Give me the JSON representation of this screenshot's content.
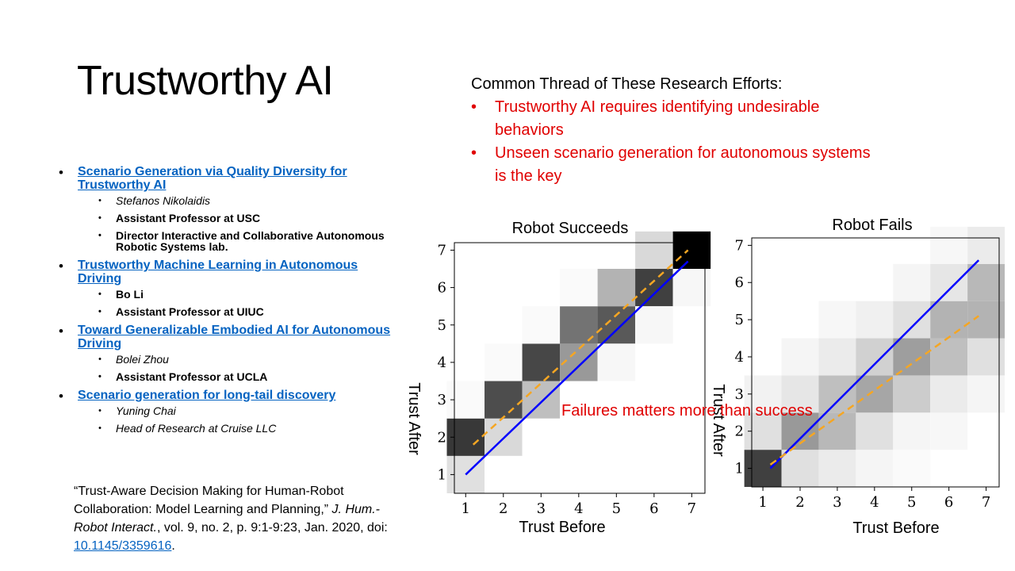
{
  "slide": {
    "title": "Trustworthy AI",
    "thread_heading": "Common Thread of These Research Efforts:",
    "thread_points": [
      "Trustworthy AI requires identifying undesirable behaviors",
      "Unseen scenario generation for autonomous systems is the key"
    ],
    "talks": [
      {
        "title": "Scenario Generation via Quality Diversity for Trustworthy AI",
        "details": [
          {
            "text": "Stefanos Nikolaidis",
            "style": "italic"
          },
          {
            "text": "Assistant Professor at USC",
            "style": "bold"
          },
          {
            "text": "Director Interactive and Collaborative Autonomous Robotic Systems lab.",
            "style": "bold"
          }
        ]
      },
      {
        "title": "Trustworthy Machine Learning in Autonomous Driving",
        "details": [
          {
            "text": "Bo Li",
            "style": "bold"
          },
          {
            "text": "Assistant Professor at UIUC",
            "style": "bold"
          }
        ]
      },
      {
        "title": "Toward Generalizable Embodied AI for Autonomous Driving",
        "details": [
          {
            "text": "Bolei Zhou",
            "style": "italic"
          },
          {
            "text": "Assistant Professor at UCLA",
            "style": "bold"
          }
        ]
      },
      {
        "title": "Scenario generation for long-tail discovery",
        "details": [
          {
            "text": "Yuning Chai",
            "style": "italic"
          },
          {
            "text": "Head of Research at Cruise LLC",
            "style": "italic"
          }
        ]
      }
    ],
    "citation_prefix": "“Trust-Aware Decision Making for Human-Robot Collaboration: Model Learning and Planning,” ",
    "citation_journal": "J. Hum.-Robot Interact.",
    "citation_mid": ", vol. 9, no. 2, p. 9:1-9:23, Jan. 2020, doi: ",
    "citation_doi": "10.1145/3359616",
    "citation_end": ".",
    "overlay_note": "Failures matters more than success"
  },
  "colors": {
    "link": "#0563c1",
    "accent_red": "#e00000",
    "fit_line": "#0000ff",
    "dashed_line": "#f5a623"
  },
  "chart_data": [
    {
      "type": "heatmap",
      "title": "Robot Succeeds",
      "xlabel": "Trust Before",
      "ylabel": "Trust After",
      "x_ticks": [
        "1",
        "2",
        "3",
        "4",
        "5",
        "6",
        "7"
      ],
      "y_ticks": [
        "1",
        "2",
        "3",
        "4",
        "5",
        "6",
        "7"
      ],
      "cells": [
        {
          "x": 1,
          "y": 1,
          "v": 0.12
        },
        {
          "x": 1,
          "y": 2,
          "v": 0.78
        },
        {
          "x": 2,
          "y": 2,
          "v": 0.15
        },
        {
          "x": 2,
          "y": 3,
          "v": 0.7
        },
        {
          "x": 3,
          "y": 3,
          "v": 0.25
        },
        {
          "x": 3,
          "y": 4,
          "v": 0.72
        },
        {
          "x": 4,
          "y": 4,
          "v": 0.4
        },
        {
          "x": 4,
          "y": 5,
          "v": 0.55
        },
        {
          "x": 5,
          "y": 5,
          "v": 0.65
        },
        {
          "x": 5,
          "y": 6,
          "v": 0.3
        },
        {
          "x": 6,
          "y": 6,
          "v": 0.75
        },
        {
          "x": 6,
          "y": 7,
          "v": 0.15
        },
        {
          "x": 7,
          "y": 7,
          "v": 1.0
        },
        {
          "x": 7,
          "y": 6,
          "v": 0.03
        },
        {
          "x": 1,
          "y": 3,
          "v": 0.02
        },
        {
          "x": 2,
          "y": 4,
          "v": 0.02
        },
        {
          "x": 3,
          "y": 5,
          "v": 0.02
        },
        {
          "x": 4,
          "y": 6,
          "v": 0.02
        },
        {
          "x": 6,
          "y": 5,
          "v": 0.03
        },
        {
          "x": 5,
          "y": 4,
          "v": 0.03
        }
      ],
      "series": [
        {
          "style": "solid",
          "color": "#0000ff",
          "points": [
            [
              1,
              1
            ],
            [
              6.9,
              6.7
            ]
          ]
        },
        {
          "style": "dashed",
          "color": "#f5a623",
          "points": [
            [
              1.2,
              1.8
            ],
            [
              6.9,
              7.0
            ]
          ]
        }
      ],
      "xlim": [
        0.7,
        7.35
      ],
      "ylim": [
        0.5,
        7.2
      ]
    },
    {
      "type": "heatmap",
      "title": "Robot Fails",
      "xlabel": "Trust Before",
      "ylabel": "Trust After",
      "x_ticks": [
        "1",
        "2",
        "3",
        "4",
        "5",
        "6",
        "7"
      ],
      "y_ticks": [
        "1",
        "2",
        "3",
        "4",
        "5",
        "6",
        "7"
      ],
      "cells": [
        {
          "x": 1,
          "y": 1,
          "v": 0.75
        },
        {
          "x": 2,
          "y": 1,
          "v": 0.12
        },
        {
          "x": 3,
          "y": 1,
          "v": 0.08
        },
        {
          "x": 4,
          "y": 1,
          "v": 0.04
        },
        {
          "x": 5,
          "y": 1,
          "v": 0.02
        },
        {
          "x": 1,
          "y": 2,
          "v": 0.12
        },
        {
          "x": 2,
          "y": 2,
          "v": 0.4
        },
        {
          "x": 3,
          "y": 2,
          "v": 0.28
        },
        {
          "x": 4,
          "y": 2,
          "v": 0.12
        },
        {
          "x": 5,
          "y": 2,
          "v": 0.04
        },
        {
          "x": 6,
          "y": 2,
          "v": 0.03
        },
        {
          "x": 1,
          "y": 3,
          "v": 0.05
        },
        {
          "x": 2,
          "y": 3,
          "v": 0.1
        },
        {
          "x": 3,
          "y": 3,
          "v": 0.25
        },
        {
          "x": 4,
          "y": 3,
          "v": 0.35
        },
        {
          "x": 5,
          "y": 3,
          "v": 0.2
        },
        {
          "x": 6,
          "y": 3,
          "v": 0.08
        },
        {
          "x": 7,
          "y": 3,
          "v": 0.04
        },
        {
          "x": 2,
          "y": 4,
          "v": 0.04
        },
        {
          "x": 3,
          "y": 4,
          "v": 0.08
        },
        {
          "x": 4,
          "y": 4,
          "v": 0.18
        },
        {
          "x": 5,
          "y": 4,
          "v": 0.38
        },
        {
          "x": 6,
          "y": 4,
          "v": 0.25
        },
        {
          "x": 7,
          "y": 4,
          "v": 0.12
        },
        {
          "x": 3,
          "y": 5,
          "v": 0.03
        },
        {
          "x": 4,
          "y": 5,
          "v": 0.06
        },
        {
          "x": 5,
          "y": 5,
          "v": 0.12
        },
        {
          "x": 6,
          "y": 5,
          "v": 0.3
        },
        {
          "x": 7,
          "y": 5,
          "v": 0.3
        },
        {
          "x": 5,
          "y": 6,
          "v": 0.04
        },
        {
          "x": 6,
          "y": 6,
          "v": 0.1
        },
        {
          "x": 7,
          "y": 6,
          "v": 0.28
        },
        {
          "x": 6,
          "y": 7,
          "v": 0.03
        },
        {
          "x": 7,
          "y": 7,
          "v": 0.08
        }
      ],
      "series": [
        {
          "style": "solid",
          "color": "#0000ff",
          "points": [
            [
              1.2,
              1.0
            ],
            [
              6.8,
              6.6
            ]
          ]
        },
        {
          "style": "dashed",
          "color": "#f5a623",
          "points": [
            [
              1.2,
              1.1
            ],
            [
              6.8,
              5.1
            ]
          ]
        }
      ],
      "xlim": [
        0.7,
        7.35
      ],
      "ylim": [
        0.5,
        7.2
      ]
    }
  ]
}
